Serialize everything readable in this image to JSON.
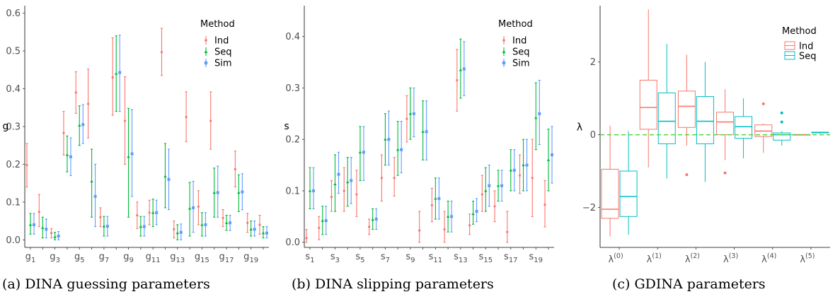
{
  "colors": {
    "Ind": "#F8766D",
    "Seq": "#00BA38",
    "Sim": "#619CFF",
    "Seq_box": "#00BFC4",
    "ref_line": "#4CD93C"
  },
  "captions": {
    "a": "(a) DINA guessing parameters",
    "b": "(b) DINA slipping parameters",
    "c": "(c) GDINA parameters"
  },
  "chart_data": [
    {
      "type": "errorbar",
      "ylabel": "g",
      "ylim": [
        -0.02,
        0.62
      ],
      "yticks": [
        0.0,
        0.1,
        0.2,
        0.3,
        0.4,
        0.5,
        0.6
      ],
      "ytick_labels": [
        "0.0",
        "0.1",
        "0.2",
        "0.3",
        "0.4",
        "0.5",
        "0.6"
      ],
      "categories": [
        "1",
        "2",
        "3",
        "4",
        "5",
        "6",
        "7",
        "8",
        "9",
        "10",
        "11",
        "12",
        "13",
        "14",
        "15",
        "16",
        "17",
        "18",
        "19",
        "20"
      ],
      "tick_labels": [
        {
          "index": 0,
          "base": "g",
          "sub": "1"
        },
        {
          "index": 2,
          "base": "g",
          "sub": "3"
        },
        {
          "index": 4,
          "base": "g",
          "sub": "5"
        },
        {
          "index": 6,
          "base": "g",
          "sub": "7"
        },
        {
          "index": 8,
          "base": "g",
          "sub": "9"
        },
        {
          "index": 10,
          "base": "g",
          "sub": "11"
        },
        {
          "index": 12,
          "base": "g",
          "sub": "13"
        },
        {
          "index": 14,
          "base": "g",
          "sub": "15"
        },
        {
          "index": 16,
          "base": "g",
          "sub": "17"
        },
        {
          "index": 18,
          "base": "g",
          "sub": "19"
        }
      ],
      "legend": {
        "title": "Method",
        "entries": [
          "Ind",
          "Seq",
          "Sim"
        ],
        "position": "top-right"
      },
      "series": [
        {
          "name": "Ind",
          "mean": [
            0.198,
            0.074,
            0.018,
            0.283,
            0.39,
            0.36,
            0.06,
            0.43,
            0.315,
            0.065,
            0.072,
            0.497,
            0.028,
            0.325,
            0.088,
            0.315,
            0.058,
            0.187,
            0.045,
            0.04
          ],
          "lower": [
            0.14,
            0.035,
            0.005,
            0.225,
            0.335,
            0.27,
            0.035,
            0.33,
            0.2,
            0.03,
            0.04,
            0.435,
            0.005,
            0.26,
            0.04,
            0.24,
            0.035,
            0.14,
            0.02,
            0.015
          ],
          "upper": [
            0.255,
            0.12,
            0.03,
            0.34,
            0.445,
            0.452,
            0.085,
            0.535,
            0.432,
            0.1,
            0.105,
            0.56,
            0.05,
            0.392,
            0.13,
            0.392,
            0.08,
            0.235,
            0.07,
            0.065
          ]
        },
        {
          "name": "Seq",
          "mean": [
            0.04,
            0.032,
            0.008,
            0.225,
            0.303,
            0.155,
            0.036,
            0.44,
            0.22,
            0.035,
            0.072,
            0.168,
            0.018,
            0.083,
            0.04,
            0.125,
            0.045,
            0.125,
            0.028,
            0.018
          ],
          "lower": [
            0.015,
            0.005,
            0.0,
            0.18,
            0.25,
            0.06,
            0.01,
            0.34,
            0.06,
            0.01,
            0.035,
            0.085,
            0.0,
            0.01,
            0.01,
            0.06,
            0.025,
            0.075,
            0.01,
            0.005
          ],
          "upper": [
            0.07,
            0.06,
            0.02,
            0.275,
            0.355,
            0.24,
            0.062,
            0.54,
            0.348,
            0.062,
            0.108,
            0.255,
            0.04,
            0.152,
            0.072,
            0.19,
            0.065,
            0.172,
            0.05,
            0.035
          ]
        },
        {
          "name": "Sim",
          "mean": [
            0.04,
            0.028,
            0.01,
            0.22,
            0.305,
            0.115,
            0.036,
            0.443,
            0.228,
            0.035,
            0.072,
            0.16,
            0.02,
            0.085,
            0.04,
            0.125,
            0.045,
            0.127,
            0.028,
            0.018
          ],
          "lower": [
            0.015,
            0.005,
            0.0,
            0.17,
            0.255,
            0.035,
            0.01,
            0.34,
            0.115,
            0.01,
            0.04,
            0.08,
            0.0,
            0.02,
            0.01,
            0.06,
            0.025,
            0.08,
            0.01,
            0.005
          ],
          "upper": [
            0.07,
            0.055,
            0.022,
            0.27,
            0.358,
            0.2,
            0.062,
            0.542,
            0.345,
            0.062,
            0.105,
            0.24,
            0.042,
            0.155,
            0.072,
            0.195,
            0.065,
            0.175,
            0.05,
            0.035
          ]
        }
      ]
    },
    {
      "type": "errorbar",
      "ylabel": "s",
      "ylim": [
        -0.01,
        0.46
      ],
      "yticks": [
        0.0,
        0.1,
        0.2,
        0.3,
        0.4
      ],
      "ytick_labels": [
        "0.0",
        "0.1",
        "0.2",
        "0.3",
        "0.4"
      ],
      "categories": [
        "1",
        "2",
        "3",
        "4",
        "5",
        "6",
        "7",
        "8",
        "9",
        "10",
        "11",
        "12",
        "13",
        "14",
        "15",
        "16",
        "17",
        "18",
        "19",
        "20"
      ],
      "tick_labels": [
        {
          "index": 0,
          "base": "s",
          "sub": "1"
        },
        {
          "index": 2,
          "base": "s",
          "sub": "3"
        },
        {
          "index": 4,
          "base": "s",
          "sub": "5"
        },
        {
          "index": 6,
          "base": "s",
          "sub": "7"
        },
        {
          "index": 8,
          "base": "s",
          "sub": "9"
        },
        {
          "index": 10,
          "base": "s",
          "sub": "11"
        },
        {
          "index": 12,
          "base": "s",
          "sub": "13"
        },
        {
          "index": 14,
          "base": "s",
          "sub": "15"
        },
        {
          "index": 16,
          "base": "s",
          "sub": "17"
        },
        {
          "index": 18,
          "base": "s",
          "sub": "19"
        }
      ],
      "legend": {
        "title": "Method",
        "entries": [
          "Ind",
          "Seq",
          "Sim"
        ],
        "position": "top-right"
      },
      "series": [
        {
          "name": "Ind",
          "mean": [
            0.008,
            0.028,
            0.088,
            0.1,
            0.093,
            0.03,
            0.125,
            0.125,
            0.24,
            0.023,
            0.072,
            0.025,
            0.315,
            0.033,
            0.093,
            0.07,
            0.02,
            0.13,
            0.125,
            0.073
          ],
          "lower": [
            0.0,
            0.005,
            0.06,
            0.06,
            0.05,
            0.015,
            0.08,
            0.09,
            0.195,
            0.0,
            0.04,
            0.0,
            0.255,
            0.015,
            0.06,
            0.04,
            0.0,
            0.095,
            0.05,
            0.03
          ],
          "upper": [
            0.025,
            0.05,
            0.12,
            0.145,
            0.14,
            0.045,
            0.17,
            0.165,
            0.285,
            0.06,
            0.105,
            0.06,
            0.375,
            0.055,
            0.13,
            0.1,
            0.06,
            0.17,
            0.2,
            0.12
          ]
        },
        {
          "name": "Seq",
          "mean": [
            0.1,
            0.042,
            0.113,
            0.117,
            0.175,
            0.044,
            0.2,
            0.18,
            0.25,
            0.215,
            0.085,
            0.05,
            0.335,
            0.055,
            0.1,
            0.11,
            0.14,
            0.15,
            0.242,
            0.16
          ],
          "lower": [
            0.065,
            0.015,
            0.06,
            0.07,
            0.12,
            0.025,
            0.15,
            0.13,
            0.2,
            0.16,
            0.045,
            0.02,
            0.28,
            0.035,
            0.06,
            0.08,
            0.1,
            0.1,
            0.18,
            0.1
          ],
          "upper": [
            0.145,
            0.07,
            0.17,
            0.165,
            0.225,
            0.065,
            0.25,
            0.235,
            0.3,
            0.275,
            0.125,
            0.08,
            0.395,
            0.08,
            0.145,
            0.14,
            0.18,
            0.2,
            0.31,
            0.22
          ]
        },
        {
          "name": "Sim",
          "mean": [
            0.1,
            0.042,
            0.132,
            0.12,
            0.175,
            0.045,
            0.2,
            0.18,
            0.25,
            0.215,
            0.085,
            0.05,
            0.337,
            0.06,
            0.11,
            0.11,
            0.14,
            0.15,
            0.25,
            0.17
          ],
          "lower": [
            0.065,
            0.015,
            0.095,
            0.075,
            0.12,
            0.025,
            0.15,
            0.135,
            0.205,
            0.16,
            0.045,
            0.02,
            0.285,
            0.04,
            0.07,
            0.08,
            0.1,
            0.1,
            0.19,
            0.115
          ],
          "upper": [
            0.145,
            0.07,
            0.175,
            0.165,
            0.225,
            0.065,
            0.255,
            0.235,
            0.3,
            0.275,
            0.125,
            0.08,
            0.39,
            0.085,
            0.15,
            0.14,
            0.18,
            0.2,
            0.315,
            0.225
          ]
        }
      ]
    },
    {
      "type": "boxplot",
      "ylabel": "λ",
      "ylim": [
        -3.1,
        3.55
      ],
      "yticks": [
        -2,
        0,
        2
      ],
      "ytick_labels": [
        "−2",
        "0",
        "2"
      ],
      "reference_line": {
        "y": 0,
        "style": "dashed"
      },
      "categories": [
        {
          "base": "λ",
          "sup": "(0)"
        },
        {
          "base": "λ",
          "sup": "(1)"
        },
        {
          "base": "λ",
          "sup": "(2)"
        },
        {
          "base": "λ",
          "sup": "(3)"
        },
        {
          "base": "λ",
          "sup": "(4)"
        },
        {
          "base": "λ",
          "sup": "(5)"
        }
      ],
      "legend": {
        "title": "Method",
        "entries": [
          "Ind",
          "Seq"
        ],
        "position": "top-right"
      },
      "series": [
        {
          "name": "Ind",
          "boxes": [
            {
              "min": -2.8,
              "q1": -2.3,
              "median": -2.05,
              "q3": -0.95,
              "max": 0.25,
              "outliers": []
            },
            {
              "min": -0.9,
              "q1": 0.15,
              "median": 0.75,
              "q3": 1.5,
              "max": 3.45,
              "outliers": []
            },
            {
              "min": -0.3,
              "q1": 0.2,
              "median": 0.78,
              "q3": 1.2,
              "max": 2.2,
              "outliers": [
                -1.1
              ]
            },
            {
              "min": -0.7,
              "q1": 0.0,
              "median": 0.35,
              "q3": 0.62,
              "max": 1.25,
              "outliers": [
                -1.05
              ]
            },
            {
              "min": -0.5,
              "q1": -0.05,
              "median": 0.1,
              "q3": 0.27,
              "max": 0.3,
              "outliers": [
                0.85
              ]
            },
            {
              "min": -0.02,
              "q1": -0.01,
              "median": 0.0,
              "q3": 0.0,
              "max": 0.01,
              "outliers": []
            }
          ]
        },
        {
          "name": "Seq",
          "boxes": [
            {
              "min": -2.75,
              "q1": -2.25,
              "median": -1.7,
              "q3": -1.0,
              "max": 0.1,
              "outliers": []
            },
            {
              "min": -1.2,
              "q1": -0.25,
              "median": 0.37,
              "q3": 1.15,
              "max": 2.5,
              "outliers": []
            },
            {
              "min": -1.3,
              "q1": -0.25,
              "median": 0.37,
              "q3": 1.05,
              "max": 2.0,
              "outliers": []
            },
            {
              "min": -0.65,
              "q1": -0.1,
              "median": 0.22,
              "q3": 0.5,
              "max": 1.0,
              "outliers": []
            },
            {
              "min": -0.3,
              "q1": -0.15,
              "median": 0.0,
              "q3": 0.05,
              "max": 0.1,
              "outliers": [
                0.35,
                0.6
              ]
            },
            {
              "min": 0.03,
              "q1": 0.05,
              "median": 0.06,
              "q3": 0.07,
              "max": 0.08,
              "outliers": []
            }
          ]
        }
      ]
    }
  ]
}
